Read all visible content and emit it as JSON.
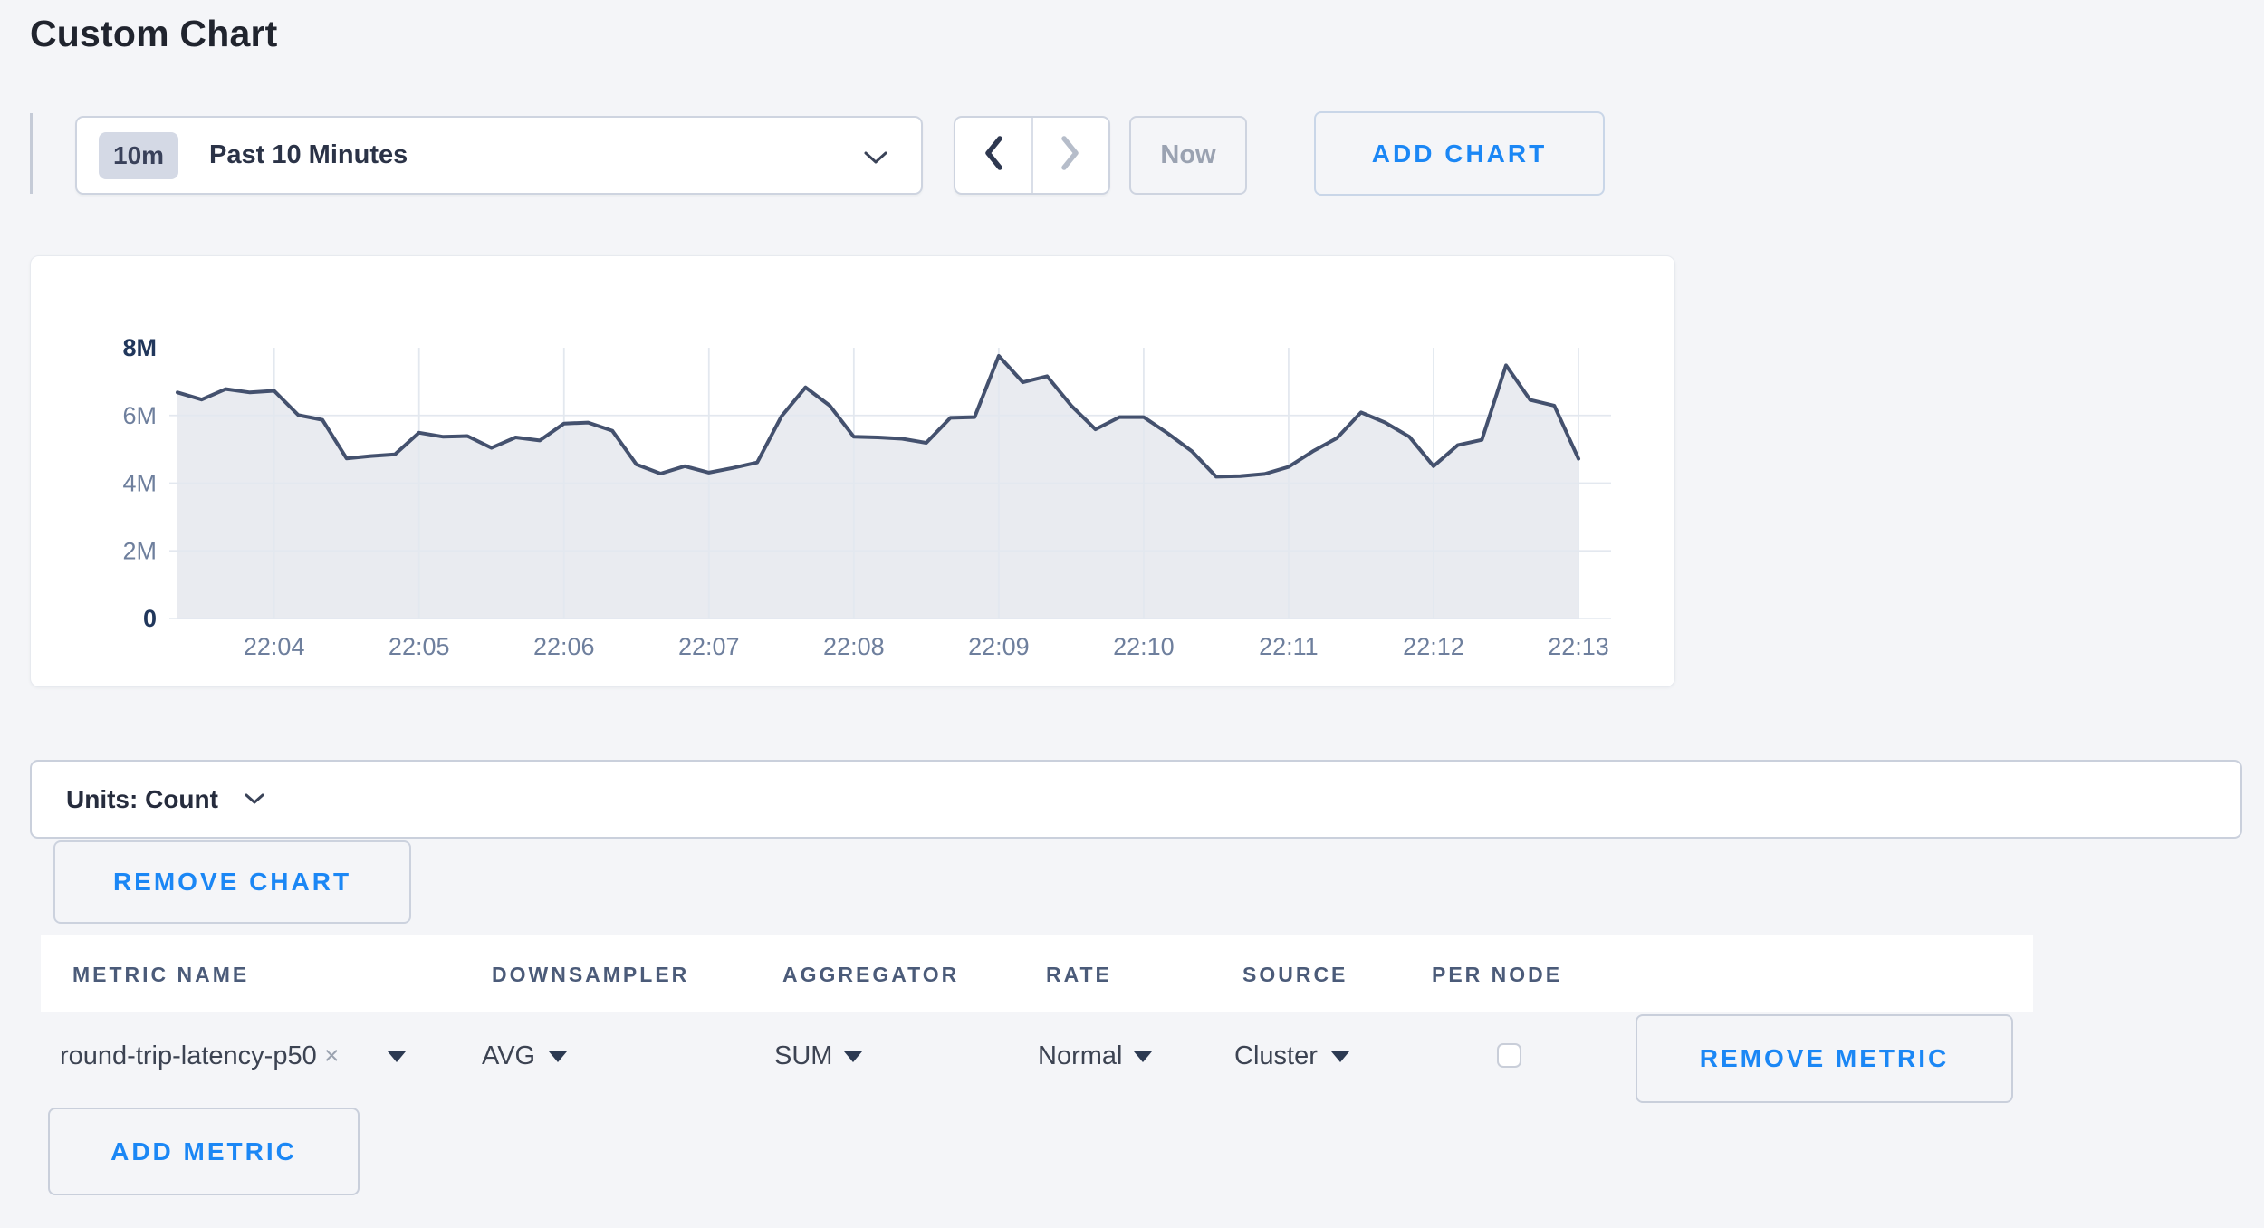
{
  "page": {
    "title": "Custom Chart"
  },
  "colors": {
    "background": "#f4f5f8",
    "accent_blue": "#1b87f5",
    "line": "#44516e",
    "area_fill": "#e9ebf0",
    "grid": "#e3e8ef",
    "tick": "#6e7f9d",
    "tick_bold": "#21375c"
  },
  "toolbar": {
    "time_range": {
      "badge": "10m",
      "label": "Past 10 Minutes"
    },
    "now_label": "Now",
    "add_chart_label": "ADD CHART"
  },
  "icons": {
    "time_range_caret": "chevron-down",
    "prev": "chevron-left",
    "next": "chevron-right",
    "units_caret": "chevron-down",
    "dropdown_caret": "triangle-down",
    "remove_tag_glyph": "×"
  },
  "chart_data": {
    "type": "area",
    "title": "",
    "xlabel": "",
    "ylabel": "Count",
    "x_ticks": [
      "22:04",
      "22:05",
      "22:06",
      "22:07",
      "22:08",
      "22:09",
      "22:10",
      "22:11",
      "22:12",
      "22:13"
    ],
    "first_tick_index": 4,
    "points_per_tick": 6,
    "interval_seconds": 10,
    "ylim_millions": [
      0,
      8
    ],
    "grid": true,
    "y_ticks": [
      {
        "label": "8M",
        "value": 8,
        "bold": true
      },
      {
        "label": "6M",
        "value": 6,
        "bold": false
      },
      {
        "label": "4M",
        "value": 4,
        "bold": false
      },
      {
        "label": "2M",
        "value": 2,
        "bold": false
      },
      {
        "label": "0",
        "value": 0,
        "bold": true
      }
    ],
    "series": [
      {
        "name": "round-trip-latency-p50",
        "unit": "Count",
        "values_millions": [
          6.68,
          6.47,
          6.78,
          6.68,
          6.73,
          6.01,
          5.87,
          4.73,
          4.8,
          4.85,
          5.49,
          5.37,
          5.39,
          5.04,
          5.35,
          5.26,
          5.76,
          5.79,
          5.55,
          4.55,
          4.28,
          4.5,
          4.31,
          4.45,
          4.61,
          5.97,
          6.83,
          6.29,
          5.37,
          5.35,
          5.31,
          5.19,
          5.93,
          5.95,
          7.76,
          6.98,
          7.16,
          6.29,
          5.59,
          5.95,
          5.95,
          5.47,
          4.94,
          4.19,
          4.21,
          4.27,
          4.48,
          4.94,
          5.33,
          6.09,
          5.79,
          5.37,
          4.5,
          5.12,
          5.28,
          7.48,
          6.46,
          6.29,
          4.72
        ]
      }
    ]
  },
  "units_bar": {
    "label": "Units: Count"
  },
  "buttons": {
    "remove_chart": "REMOVE CHART",
    "add_metric": "ADD METRIC"
  },
  "metrics_table": {
    "columns": [
      "METRIC NAME",
      "DOWNSAMPLER",
      "AGGREGATOR",
      "RATE",
      "SOURCE",
      "PER NODE"
    ],
    "rows": [
      {
        "metric_name": "round-trip-latency-p50",
        "downsampler": "AVG",
        "aggregator": "SUM",
        "rate": "Normal",
        "source": "Cluster",
        "per_node_checked": false,
        "remove_label": "REMOVE METRIC"
      }
    ]
  }
}
